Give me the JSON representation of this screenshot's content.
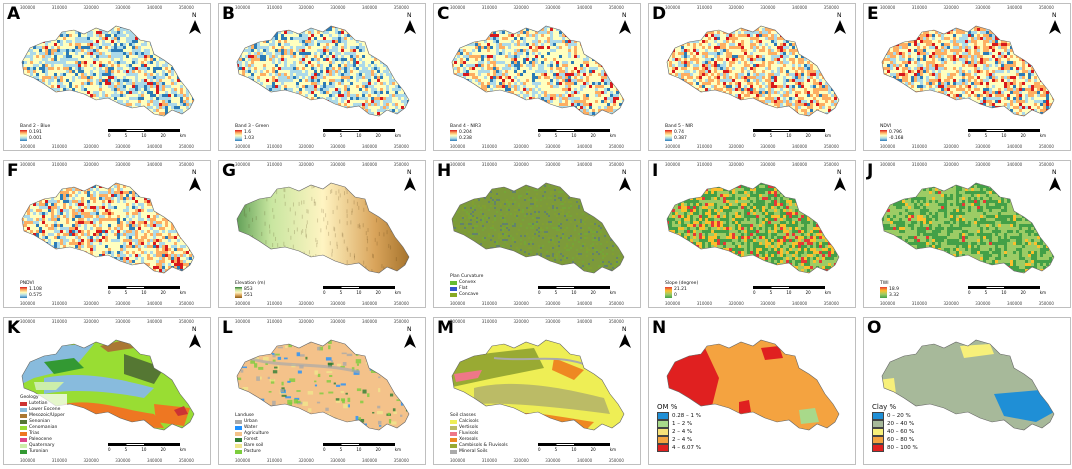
{
  "panels": {
    "A": {
      "label": "A",
      "legend_title": "Band 2 - Blue",
      "legend_values": [
        "0.191",
        "0.001"
      ],
      "ramp": [
        "#d7191c",
        "#fdae61",
        "#ffffbf",
        "#abd9e9",
        "#2c7bb6"
      ]
    },
    "B": {
      "label": "B",
      "legend_title": "Band 3 - Green",
      "legend_values": [
        "1.6",
        "1.03"
      ],
      "ramp": [
        "#d7191c",
        "#fdae61",
        "#ffffbf",
        "#abd9e9",
        "#2c7bb6"
      ]
    },
    "C": {
      "label": "C",
      "legend_title": "Band 4 - NIR3",
      "legend_values": [
        "0.204",
        "0.238"
      ],
      "ramp": [
        "#d7191c",
        "#fdae61",
        "#ffffbf",
        "#abd9e9",
        "#2c7bb6"
      ]
    },
    "D": {
      "label": "D",
      "legend_title": "Band 5 - NIR",
      "legend_values": [
        "0.74",
        "0.387"
      ],
      "ramp": [
        "#d7191c",
        "#fdae61",
        "#ffffbf",
        "#abd9e9",
        "#2c7bb6"
      ]
    },
    "E": {
      "label": "E",
      "legend_title": "NDVI",
      "legend_values": [
        "0.796",
        "-0.168"
      ],
      "ramp": [
        "#d7191c",
        "#fdae61",
        "#ffffbf",
        "#abd9e9",
        "#2c7bb6"
      ]
    },
    "F": {
      "label": "F",
      "legend_title": "PNDVI",
      "legend_values": [
        "1.108",
        "0.575"
      ],
      "ramp": [
        "#d7191c",
        "#fdae61",
        "#ffffbf",
        "#abd9e9",
        "#2c7bb6"
      ]
    },
    "G": {
      "label": "G",
      "legend_title": "Elevation (m)",
      "legend_values": [
        "853",
        "551"
      ],
      "ramp": [
        "#2e7d32",
        "#c8e6a0",
        "#fff4c2",
        "#d9a45b",
        "#8b5a14"
      ]
    },
    "H": {
      "label": "H",
      "legend_title": "Plan Curvature",
      "legend_items": [
        {
          "name": "Convex",
          "color": "#66bb33"
        },
        {
          "name": "Flat",
          "color": "#3355cc"
        },
        {
          "name": "Concave",
          "color": "#88aa22"
        }
      ],
      "base_color": "#7d9a3a"
    },
    "I": {
      "label": "I",
      "legend_title": "Slope (degree)",
      "legend_values": [
        "21.21",
        "0"
      ],
      "ramp": [
        "#e53935",
        "#fbc02d",
        "#9ccc65",
        "#43a047"
      ]
    },
    "J": {
      "label": "J",
      "legend_title": "TWI",
      "legend_values": [
        "18.9",
        "3.32"
      ],
      "ramp": [
        "#e53935",
        "#fbc02d",
        "#9ccc65",
        "#43a047"
      ]
    },
    "K": {
      "label": "K",
      "legend_title": "Geology",
      "legend_items": [
        {
          "name": "Lutetian",
          "color": "#cc3333"
        },
        {
          "name": "Lower Eocene",
          "color": "#88bbdd"
        },
        {
          "name": "Mesozoic/Upper",
          "color": "#aa7733"
        },
        {
          "name": "Senonian",
          "color": "#557733"
        },
        {
          "name": "Cenomanian",
          "color": "#99dd33"
        },
        {
          "name": "Trias",
          "color": "#ee7722"
        },
        {
          "name": "Paleocene",
          "color": "#dd4488"
        },
        {
          "name": "Quaternary",
          "color": "#cceeaa"
        },
        {
          "name": "Turonian",
          "color": "#339933"
        }
      ]
    },
    "L": {
      "label": "L",
      "legend_title": "Landuse",
      "legend_items": [
        {
          "name": "Urban",
          "color": "#a9a9a9"
        },
        {
          "name": "Water",
          "color": "#1e90ff"
        },
        {
          "name": "Agriculture",
          "color": "#f4c28a"
        },
        {
          "name": "Forest",
          "color": "#2e7d32"
        },
        {
          "name": "Bare soil",
          "color": "#f0e68c"
        },
        {
          "name": "Pasture",
          "color": "#7ccd3c"
        }
      ]
    },
    "M": {
      "label": "M",
      "legend_title": "Soil classes",
      "legend_items": [
        {
          "name": "Calcisols",
          "color": "#eeee55"
        },
        {
          "name": "Vertisols",
          "color": "#bbbb66"
        },
        {
          "name": "Fluvisols",
          "color": "#ee7788"
        },
        {
          "name": "Xerosols",
          "color": "#ee8822"
        },
        {
          "name": "Cambisols & Fluvisols",
          "color": "#99aa33"
        },
        {
          "name": "Mineral Soils",
          "color": "#aaaaaa"
        }
      ]
    },
    "N": {
      "label": "N",
      "legend_title": "OM %",
      "legend_items": [
        {
          "name": "0.28 – 1 %",
          "color": "#1f8fd6"
        },
        {
          "name": "1 – 2 %",
          "color": "#a8d98a"
        },
        {
          "name": "2 – 4 %",
          "color": "#f7e27a"
        },
        {
          "name": "2 – 4 %",
          "color": "#f4a340"
        },
        {
          "name": "4 – 6.07 %",
          "color": "#e02020"
        }
      ]
    },
    "O": {
      "label": "O",
      "legend_title": "Clay %",
      "legend_items": [
        {
          "name": "0 – 20 %",
          "color": "#1f8fd6"
        },
        {
          "name": "20 – 40 %",
          "color": "#a7b99a"
        },
        {
          "name": "40 – 60 %",
          "color": "#f7f07a"
        },
        {
          "name": "60 – 80 %",
          "color": "#f4a340"
        },
        {
          "name": "80 – 100 %",
          "color": "#e02020"
        }
      ]
    }
  },
  "axis": {
    "top_ticks": [
      "300000",
      "310000",
      "320000",
      "330000",
      "340000",
      "350000"
    ],
    "bottom_ticks": [
      "300000",
      "310000",
      "320000",
      "330000",
      "340000",
      "350000"
    ]
  },
  "scale_bar": {
    "values": [
      "0",
      "5",
      "10",
      "20"
    ],
    "unit": "km"
  },
  "north_label": "N"
}
